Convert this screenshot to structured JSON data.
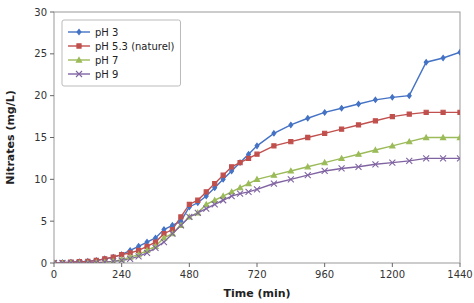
{
  "chart_data": {
    "type": "line",
    "xlabel": "Time (min)",
    "ylabel": "Nitrates (mg/L)",
    "x": [
      0,
      30,
      60,
      90,
      120,
      150,
      180,
      210,
      240,
      270,
      300,
      330,
      360,
      390,
      420,
      450,
      480,
      510,
      540,
      570,
      600,
      630,
      660,
      690,
      720,
      780,
      840,
      900,
      960,
      1020,
      1080,
      1140,
      1200,
      1260,
      1320,
      1380,
      1440
    ],
    "series": [
      {
        "name": "pH 3",
        "color": "#4472C4",
        "marker": "diamond",
        "values": [
          0,
          0.05,
          0.1,
          0.15,
          0.2,
          0.3,
          0.5,
          0.7,
          1.0,
          1.5,
          2.0,
          2.5,
          3.0,
          4.0,
          4.5,
          5.0,
          6.7,
          7.2,
          8.0,
          9.0,
          10.0,
          11.0,
          12.0,
          13.0,
          14.0,
          15.5,
          16.5,
          17.3,
          18.0,
          18.5,
          19.0,
          19.5,
          19.8,
          20.0,
          24.0,
          24.5,
          25.2
        ]
      },
      {
        "name": "pH 5.3 (naturel)",
        "color": "#C0504D",
        "marker": "square",
        "values": [
          0,
          0.05,
          0.1,
          0.15,
          0.2,
          0.3,
          0.5,
          0.7,
          1.0,
          1.2,
          1.5,
          2.0,
          2.5,
          3.5,
          4.0,
          5.5,
          7.0,
          7.5,
          8.5,
          9.5,
          10.5,
          11.5,
          12.0,
          12.5,
          13.0,
          14.0,
          14.5,
          15.0,
          15.5,
          16.0,
          16.5,
          17.0,
          17.5,
          17.8,
          18.0,
          18.0,
          18.0
        ]
      },
      {
        "name": "pH 7",
        "color": "#9BBB59",
        "marker": "triangle",
        "values": [
          0,
          0.0,
          0.0,
          0.0,
          0.0,
          0.05,
          0.1,
          0.2,
          0.4,
          0.7,
          1.0,
          1.5,
          2.0,
          3.0,
          3.5,
          4.5,
          5.5,
          6.0,
          7.0,
          7.5,
          8.0,
          8.5,
          9.0,
          9.5,
          10.0,
          10.5,
          11.0,
          11.5,
          12.0,
          12.5,
          13.0,
          13.5,
          14.0,
          14.5,
          15.0,
          15.0,
          15.0
        ]
      },
      {
        "name": "pH 9",
        "color": "#8064A2",
        "marker": "x",
        "values": [
          0,
          0.0,
          0.0,
          0.0,
          0.0,
          0.05,
          0.1,
          0.2,
          0.3,
          0.5,
          0.8,
          1.2,
          1.8,
          2.5,
          3.5,
          4.5,
          5.5,
          6.0,
          6.5,
          7.0,
          7.5,
          8.0,
          8.3,
          8.5,
          8.8,
          9.5,
          10.0,
          10.5,
          11.0,
          11.3,
          11.5,
          11.8,
          12.0,
          12.2,
          12.5,
          12.5,
          12.5
        ]
      }
    ],
    "xlim": [
      0,
      1440
    ],
    "ylim": [
      0,
      30
    ],
    "xticks": [
      0,
      240,
      480,
      720,
      960,
      1200,
      1440
    ],
    "yticks": [
      0,
      5,
      10,
      15,
      20,
      25,
      30
    ],
    "legend": "upper left",
    "grid": false
  }
}
